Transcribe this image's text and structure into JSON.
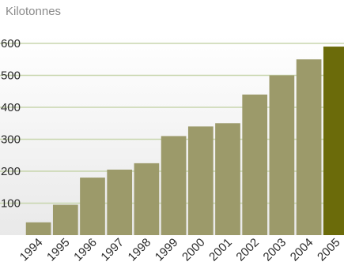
{
  "chart_data": {
    "type": "bar",
    "unit_label": "Kilotonnes",
    "categories": [
      "1994",
      "1995",
      "1996",
      "1997",
      "1998",
      "1999",
      "2000",
      "2001",
      "2002",
      "2003",
      "2004",
      "2005"
    ],
    "values": [
      40,
      95,
      180,
      205,
      225,
      310,
      340,
      350,
      440,
      500,
      550,
      590
    ],
    "yticks": [
      "100",
      "200",
      "300",
      "400",
      "500",
      "600"
    ],
    "ylim": [
      0,
      640
    ],
    "grid": true,
    "colors": {
      "bar": "#9c9a6a",
      "highlight_bar": "#6b6b0a",
      "grid": "#c8d6ad",
      "background_top": "#ffffff",
      "background_bottom": "#e9e9e9"
    },
    "highlight_category": "2005"
  }
}
